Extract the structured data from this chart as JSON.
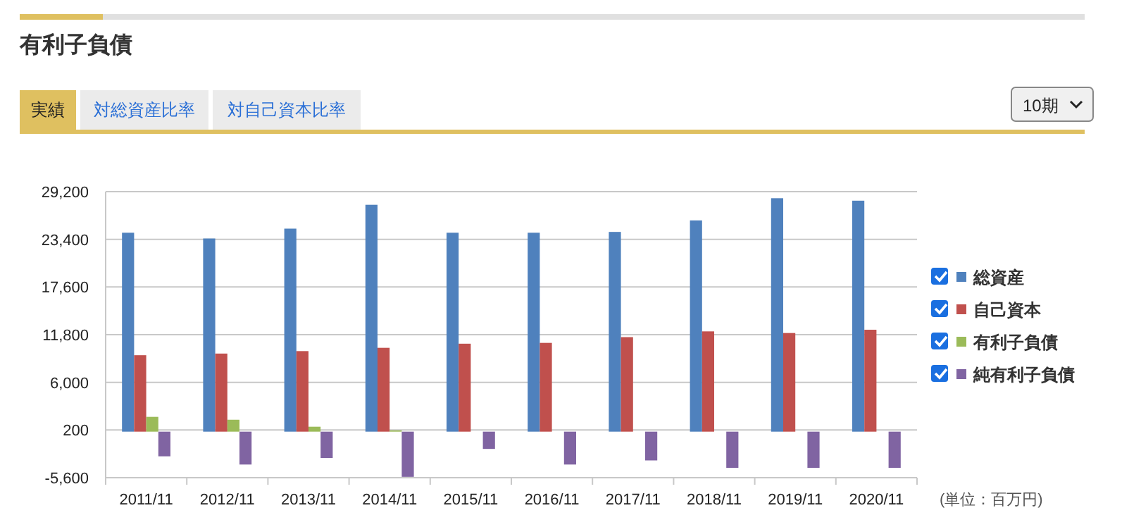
{
  "chart_data": {
    "type": "bar",
    "title": "有利子負債",
    "categories": [
      "2011/11",
      "2012/11",
      "2013/11",
      "2014/11",
      "2015/11",
      "2016/11",
      "2017/11",
      "2018/11",
      "2019/11",
      "2020/11"
    ],
    "series": [
      {
        "name": "総資産",
        "color": "#4f81bd",
        "values": [
          24200,
          23500,
          24700,
          27600,
          24200,
          24200,
          24300,
          25700,
          28400,
          28100
        ]
      },
      {
        "name": "自己資本",
        "color": "#c0504d",
        "values": [
          9300,
          9500,
          9800,
          10200,
          10700,
          10800,
          11500,
          12200,
          12000,
          12400
        ]
      },
      {
        "name": "有利子負債",
        "color": "#9bbb59",
        "values": [
          1800,
          1450,
          600,
          150,
          0,
          0,
          0,
          0,
          0,
          0
        ]
      },
      {
        "name": "純有利子負債",
        "color": "#8064a2",
        "values": [
          -3000,
          -4000,
          -3200,
          -5500,
          -2100,
          -4000,
          -3500,
          -4400,
          -4400,
          -4400
        ]
      }
    ],
    "ylim": [
      -5600,
      29200
    ],
    "yticks": [
      {
        "value": -5600,
        "label": "-5,600"
      },
      {
        "value": 200,
        "label": "200"
      },
      {
        "value": 6000,
        "label": "6,000"
      },
      {
        "value": 11800,
        "label": "11,800"
      },
      {
        "value": 17600,
        "label": "17,600"
      },
      {
        "value": 23400,
        "label": "23,400"
      },
      {
        "value": 29200,
        "label": "29,200"
      }
    ],
    "grid": "y",
    "legend": "right",
    "annotations": [
      "実績",
      "対総資産比率",
      "対自己資本比率",
      "10期",
      "(単位：百万円)"
    ]
  }
}
